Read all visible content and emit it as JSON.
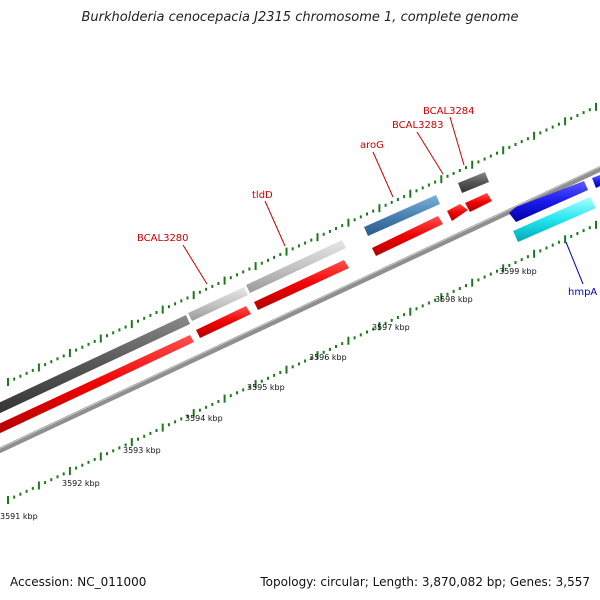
{
  "title": "Burkholderia cenocepacia J2315 chromosome 1, complete genome",
  "footer": {
    "accession": "Accession: NC_011000",
    "summary": "Topology: circular; Length: 3,870,082 bp; Genes: 3,557"
  },
  "colors": {
    "forward_cds": "#e00000",
    "backbone": "#8c8c8c",
    "tick": "#1a7a1a",
    "label_red": "#cc0000",
    "label_blue": "#0000cc"
  },
  "kbp_labels": [
    "3591 kbp",
    "3592 kbp",
    "3593 kbp",
    "3594 kbp",
    "3595 kbp",
    "3596 kbp",
    "3597 kbp",
    "3598 kbp",
    "3599 kbp"
  ],
  "gene_labels": [
    "BCAL3280",
    "tldD",
    "aroG",
    "BCAL3283",
    "BCAL3284",
    "hmpA"
  ]
}
